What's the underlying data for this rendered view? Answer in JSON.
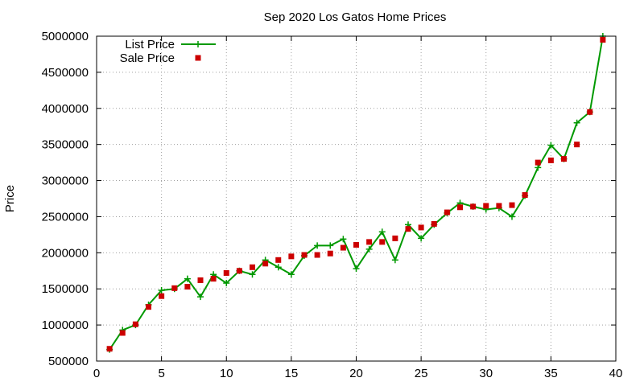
{
  "chart_data": {
    "type": "line",
    "title": "Sep 2020 Los Gatos Home Prices",
    "xlabel": "",
    "ylabel": "Price",
    "xlim": [
      0,
      40
    ],
    "ylim": [
      500000,
      5000000
    ],
    "x_ticks": [
      0,
      5,
      10,
      15,
      20,
      25,
      30,
      35,
      40
    ],
    "y_ticks": [
      500000,
      1000000,
      1500000,
      2000000,
      2500000,
      3000000,
      3500000,
      4000000,
      4500000,
      5000000
    ],
    "grid": true,
    "legend_position": "top-left",
    "series": [
      {
        "name": "List Price",
        "style": "line-points",
        "color": "#009900",
        "x": [
          1,
          2,
          3,
          4,
          5,
          6,
          7,
          8,
          9,
          10,
          11,
          12,
          13,
          14,
          15,
          16,
          17,
          18,
          19,
          20,
          21,
          22,
          23,
          24,
          25,
          26,
          27,
          28,
          29,
          30,
          31,
          32,
          33,
          34,
          35,
          36,
          37,
          38,
          39
        ],
        "y": [
          660000,
          930000,
          1000000,
          1280000,
          1480000,
          1500000,
          1640000,
          1390000,
          1700000,
          1580000,
          1750000,
          1700000,
          1900000,
          1800000,
          1700000,
          1960000,
          2100000,
          2100000,
          2190000,
          1780000,
          2050000,
          2290000,
          1900000,
          2390000,
          2200000,
          2390000,
          2550000,
          2690000,
          2640000,
          2600000,
          2620000,
          2500000,
          2790000,
          3180000,
          3490000,
          3300000,
          3800000,
          3950000,
          5000000
        ]
      },
      {
        "name": "Sale Price",
        "style": "points",
        "color": "#cc0000",
        "x": [
          1,
          2,
          3,
          4,
          5,
          6,
          7,
          8,
          9,
          10,
          11,
          12,
          13,
          14,
          15,
          16,
          17,
          18,
          19,
          20,
          21,
          22,
          23,
          24,
          25,
          26,
          27,
          28,
          29,
          30,
          31,
          32,
          33,
          34,
          35,
          36,
          37,
          38,
          39
        ],
        "y": [
          670000,
          890000,
          1010000,
          1250000,
          1400000,
          1510000,
          1530000,
          1620000,
          1640000,
          1720000,
          1750000,
          1800000,
          1850000,
          1900000,
          1950000,
          1970000,
          1970000,
          1990000,
          2070000,
          2110000,
          2150000,
          2150000,
          2200000,
          2330000,
          2350000,
          2400000,
          2560000,
          2630000,
          2640000,
          2650000,
          2650000,
          2660000,
          2800000,
          3250000,
          3280000,
          3300000,
          3500000,
          3950000,
          4950000
        ]
      }
    ]
  }
}
